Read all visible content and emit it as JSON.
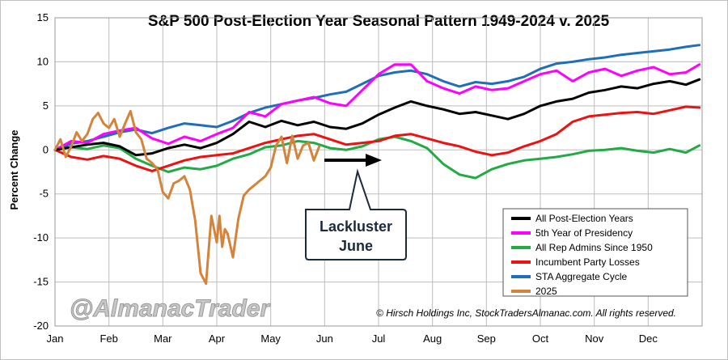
{
  "chart_data": {
    "type": "line",
    "title": "S&P 500 Post-Election Year Seasonal Pattern 1949-2024 v. 2025",
    "ylabel": "Percent Change",
    "xlabel": "",
    "ylim": [
      -20,
      15
    ],
    "yticks": [
      15,
      10,
      5,
      0,
      -5,
      -10,
      -15,
      -20
    ],
    "months": [
      "Jan",
      "Feb",
      "Mar",
      "Apr",
      "May",
      "Jun",
      "Jul",
      "Aug",
      "Sep",
      "Oct",
      "Nov",
      "Dec"
    ],
    "grid": true,
    "legend_position": "bottom-right",
    "series": [
      {
        "name": "All Post-Election Years",
        "color": "#000000",
        "x": [
          0,
          0.3,
          0.6,
          0.9,
          1.2,
          1.5,
          1.8,
          2.1,
          2.4,
          2.7,
          3.0,
          3.3,
          3.6,
          3.9,
          4.2,
          4.5,
          4.8,
          5.1,
          5.4,
          5.7,
          6.0,
          6.3,
          6.6,
          6.9,
          7.2,
          7.5,
          7.8,
          8.1,
          8.4,
          8.7,
          9.0,
          9.3,
          9.6,
          9.9,
          10.2,
          10.5,
          10.8,
          11.1,
          11.4,
          11.7,
          11.95
        ],
        "y": [
          0,
          0.3,
          0.6,
          0.8,
          0.4,
          -0.6,
          -0.4,
          0.2,
          0.6,
          0.2,
          0.8,
          1.8,
          3.2,
          2.6,
          3.3,
          2.8,
          3.2,
          2.6,
          2.4,
          3.0,
          4.0,
          4.8,
          5.5,
          5.0,
          4.6,
          4.1,
          4.3,
          3.9,
          3.5,
          4.1,
          5.0,
          5.5,
          5.8,
          6.5,
          6.8,
          7.2,
          7.0,
          7.5,
          7.8,
          7.4,
          8.0
        ]
      },
      {
        "name": "5th Year of Presidency",
        "color": "#ff00ff",
        "x": [
          0,
          0.3,
          0.6,
          0.9,
          1.2,
          1.5,
          1.8,
          2.1,
          2.4,
          2.7,
          3.0,
          3.3,
          3.6,
          3.9,
          4.2,
          4.5,
          4.8,
          5.1,
          5.4,
          5.7,
          6.0,
          6.3,
          6.6,
          6.9,
          7.2,
          7.5,
          7.8,
          8.1,
          8.4,
          8.7,
          9.0,
          9.3,
          9.6,
          9.9,
          10.2,
          10.5,
          10.8,
          11.1,
          11.4,
          11.7,
          11.95
        ],
        "y": [
          0,
          1.0,
          0.8,
          1.8,
          2.2,
          2.5,
          1.3,
          0.7,
          1.5,
          1.0,
          1.8,
          2.5,
          4.3,
          3.8,
          5.2,
          5.6,
          6.0,
          5.3,
          5.0,
          6.8,
          8.6,
          9.7,
          9.7,
          7.8,
          7.0,
          6.4,
          7.2,
          6.8,
          7.0,
          7.8,
          8.6,
          9.0,
          7.8,
          8.8,
          9.2,
          8.4,
          9.0,
          9.4,
          8.6,
          8.8,
          9.7
        ]
      },
      {
        "name": "All Rep Admins Since 1950",
        "color": "#22aa44",
        "x": [
          0,
          0.3,
          0.6,
          0.9,
          1.2,
          1.5,
          1.8,
          2.1,
          2.4,
          2.7,
          3.0,
          3.3,
          3.6,
          3.9,
          4.2,
          4.5,
          4.8,
          5.1,
          5.4,
          5.7,
          6.0,
          6.3,
          6.6,
          6.9,
          7.2,
          7.5,
          7.8,
          8.1,
          8.4,
          8.7,
          9.0,
          9.3,
          9.6,
          9.9,
          10.2,
          10.5,
          10.8,
          11.1,
          11.4,
          11.7,
          11.95
        ],
        "y": [
          0,
          0.3,
          0.1,
          0.5,
          0.2,
          -1.0,
          -1.8,
          -2.5,
          -2.0,
          -2.2,
          -1.8,
          -1.0,
          -0.5,
          0.3,
          0.5,
          1.0,
          0.8,
          0.2,
          0.0,
          0.4,
          1.2,
          1.5,
          1.0,
          0.2,
          -1.6,
          -2.8,
          -3.2,
          -2.2,
          -1.6,
          -1.2,
          -1.0,
          -0.8,
          -0.5,
          -0.1,
          0.0,
          0.2,
          -0.1,
          -0.3,
          0.1,
          -0.3,
          0.5
        ]
      },
      {
        "name": "Incumbent Party Losses",
        "color": "#ee1111",
        "x": [
          0,
          0.3,
          0.6,
          0.9,
          1.2,
          1.5,
          1.8,
          2.1,
          2.4,
          2.7,
          3.0,
          3.3,
          3.6,
          3.9,
          4.2,
          4.5,
          4.8,
          5.1,
          5.4,
          5.7,
          6.0,
          6.3,
          6.6,
          6.9,
          7.2,
          7.5,
          7.8,
          8.1,
          8.4,
          8.7,
          9.0,
          9.3,
          9.6,
          9.9,
          10.2,
          10.5,
          10.8,
          11.1,
          11.4,
          11.7,
          11.95
        ],
        "y": [
          0,
          -0.8,
          -1.1,
          -0.7,
          -1.0,
          -1.8,
          -2.4,
          -1.8,
          -1.2,
          -0.8,
          -0.6,
          -0.4,
          0.2,
          0.8,
          1.2,
          1.6,
          1.8,
          1.2,
          0.6,
          0.8,
          1.0,
          1.6,
          1.8,
          1.3,
          0.8,
          0.4,
          -0.2,
          -0.6,
          -0.3,
          0.4,
          1.0,
          1.8,
          3.2,
          3.8,
          4.0,
          4.2,
          4.3,
          4.1,
          4.5,
          4.9,
          4.8
        ]
      },
      {
        "name": "STA Aggregate Cycle",
        "color": "#1f6eb8",
        "x": [
          0,
          0.3,
          0.6,
          0.9,
          1.2,
          1.5,
          1.8,
          2.1,
          2.4,
          2.7,
          3.0,
          3.3,
          3.6,
          3.9,
          4.2,
          4.5,
          4.8,
          5.1,
          5.4,
          5.7,
          6.0,
          6.3,
          6.6,
          6.9,
          7.2,
          7.5,
          7.8,
          8.1,
          8.4,
          8.7,
          9.0,
          9.3,
          9.6,
          9.9,
          10.2,
          10.5,
          10.8,
          11.1,
          11.4,
          11.7,
          11.95
        ],
        "y": [
          0,
          0.7,
          1.0,
          1.5,
          2.0,
          2.3,
          1.9,
          2.5,
          3.0,
          2.8,
          2.6,
          3.3,
          4.2,
          4.8,
          5.2,
          5.6,
          5.9,
          6.3,
          6.6,
          7.5,
          8.4,
          8.8,
          9.0,
          8.6,
          7.8,
          7.2,
          7.7,
          7.5,
          7.8,
          8.3,
          9.2,
          9.8,
          10.0,
          10.3,
          10.5,
          10.8,
          11.0,
          11.2,
          11.4,
          11.7,
          11.9
        ]
      },
      {
        "name": "2025",
        "color": "#d4843a",
        "x": [
          0,
          0.1,
          0.2,
          0.3,
          0.4,
          0.5,
          0.6,
          0.7,
          0.8,
          0.9,
          1.0,
          1.1,
          1.2,
          1.3,
          1.4,
          1.5,
          1.6,
          1.7,
          1.8,
          1.9,
          2.0,
          2.1,
          2.2,
          2.3,
          2.4,
          2.5,
          2.6,
          2.7,
          2.8,
          2.9,
          3.0,
          3.05,
          3.1,
          3.15,
          3.2,
          3.3,
          3.4,
          3.5,
          3.6,
          3.7,
          3.8,
          3.9,
          4.0,
          4.1,
          4.2,
          4.3,
          4.4,
          4.5,
          4.6,
          4.7,
          4.8,
          4.9
        ],
        "y": [
          0,
          1.2,
          -0.8,
          0.4,
          2.0,
          1.0,
          1.8,
          3.5,
          4.2,
          3.0,
          2.5,
          3.5,
          1.5,
          3.0,
          4.4,
          2.0,
          1.2,
          -1.0,
          -1.5,
          -2.2,
          -4.8,
          -5.5,
          -3.8,
          -3.5,
          -3.0,
          -4.5,
          -8.0,
          -14.0,
          -15.2,
          -7.5,
          -10.5,
          -7.5,
          -11.0,
          -9.0,
          -9.5,
          -12.2,
          -7.8,
          -5.2,
          -4.5,
          -4.0,
          -3.5,
          -3.0,
          -2.0,
          0.5,
          1.5,
          -1.5,
          1.6,
          -1.0,
          0.5,
          0.8,
          -1.2,
          0.4
        ]
      }
    ]
  },
  "annotations": {
    "callout_line1": "Lackluster",
    "callout_line2": "June",
    "copyright": "© Hirsch Holdings Inc, StockTradersAlmanac.com. All rights reserved.",
    "watermark": "@AlmanacTrader"
  }
}
